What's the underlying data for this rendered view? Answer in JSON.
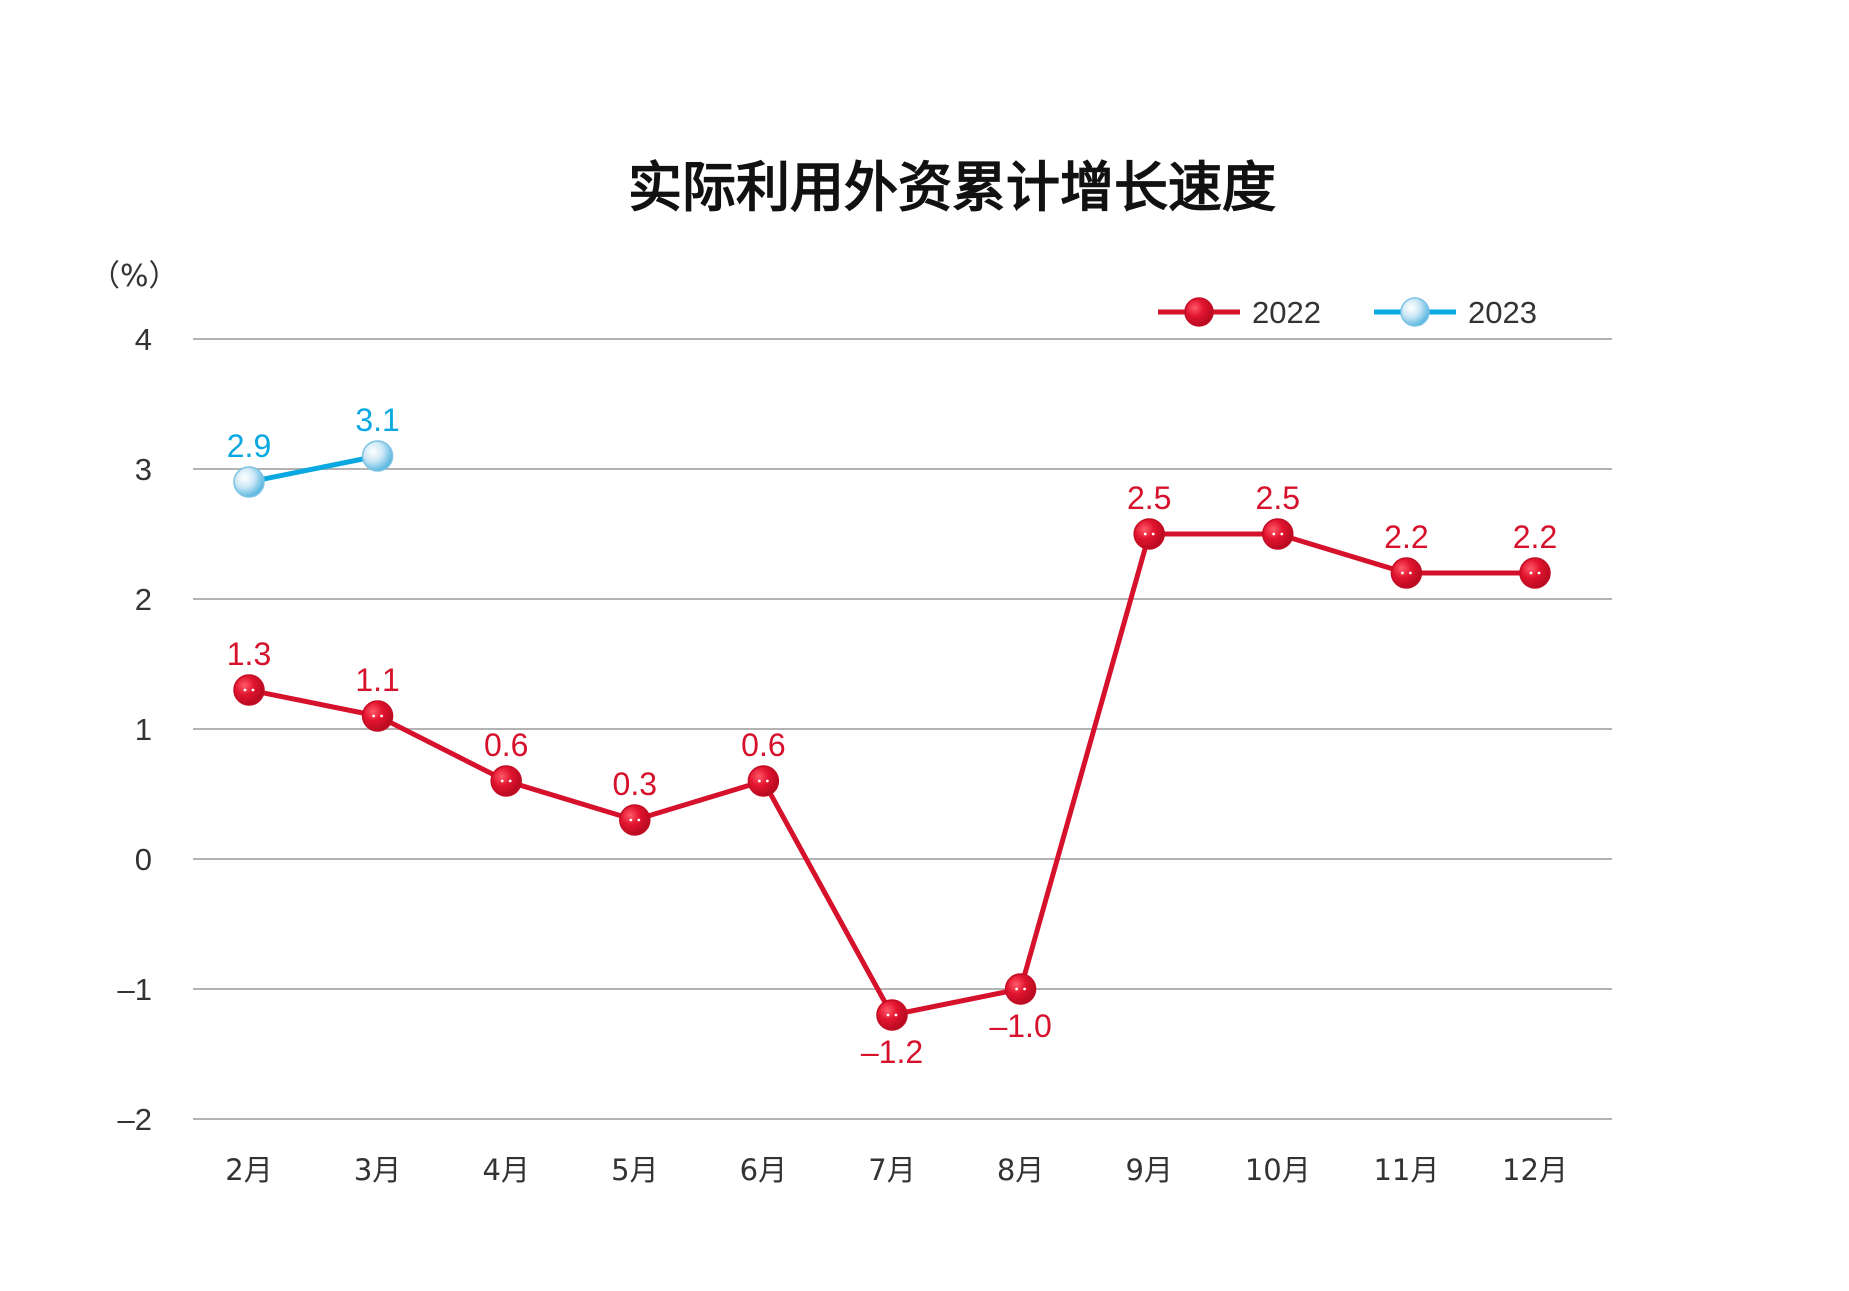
{
  "chart_data": {
    "type": "line",
    "title": "实际利用外资累计增长速度",
    "ylabel": "（%）",
    "xlabel": "",
    "categories": [
      "2月",
      "3月",
      "4月",
      "5月",
      "6月",
      "7月",
      "8月",
      "9月",
      "10月",
      "11月",
      "12月"
    ],
    "ylim": [
      -2,
      4
    ],
    "yticks": [
      4,
      3,
      2,
      1,
      0,
      -1,
      -2
    ],
    "ytick_labels": [
      "4",
      "3",
      "2",
      "1",
      "0",
      "–1",
      "–2"
    ],
    "grid": true,
    "legend_position": "top-right",
    "series": [
      {
        "name": "2022",
        "color": "#d6112b",
        "values": [
          1.3,
          1.1,
          0.6,
          0.3,
          0.6,
          -1.2,
          -1.0,
          2.5,
          2.5,
          2.2,
          2.2
        ],
        "labels": [
          "1.3",
          "1.1",
          "0.6",
          "0.3",
          "0.6",
          "–1.2",
          "–1.0",
          "2.5",
          "2.5",
          "2.2",
          "2.2"
        ],
        "label_position": [
          "above",
          "above",
          "above",
          "above",
          "above",
          "below",
          "below",
          "above",
          "above",
          "above",
          "above"
        ]
      },
      {
        "name": "2023",
        "color": "#0aa8e0",
        "values": [
          2.9,
          3.1,
          null,
          null,
          null,
          null,
          null,
          null,
          null,
          null,
          null
        ],
        "labels": [
          "2.9",
          "3.1",
          "",
          "",
          "",
          "",
          "",
          "",
          "",
          "",
          ""
        ],
        "label_position": [
          "above",
          "above",
          "",
          "",
          "",
          "",
          "",
          "",
          "",
          "",
          ""
        ]
      }
    ]
  }
}
